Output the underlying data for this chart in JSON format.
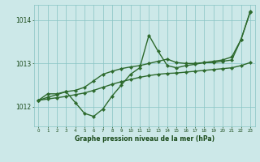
{
  "xlabel": "Graphe pression niveau de la mer (hPa)",
  "hours": [
    0,
    1,
    2,
    3,
    4,
    5,
    6,
    7,
    8,
    9,
    10,
    11,
    12,
    13,
    14,
    15,
    16,
    17,
    18,
    19,
    20,
    21,
    22,
    23
  ],
  "line1": [
    1012.15,
    1012.3,
    1012.3,
    1012.35,
    1012.1,
    1011.85,
    1011.78,
    1011.95,
    1012.25,
    1012.5,
    1012.75,
    1012.9,
    1013.65,
    1013.28,
    1012.95,
    1012.9,
    1012.95,
    1012.98,
    1013.02,
    1013.02,
    1013.05,
    1013.08,
    1013.55,
    1014.18
  ],
  "line2": [
    1012.15,
    1012.18,
    1012.21,
    1012.24,
    1012.28,
    1012.32,
    1012.38,
    1012.45,
    1012.52,
    1012.58,
    1012.63,
    1012.68,
    1012.72,
    1012.75,
    1012.77,
    1012.78,
    1012.8,
    1012.82,
    1012.84,
    1012.86,
    1012.88,
    1012.9,
    1012.95,
    1013.02
  ],
  "line3": [
    1012.15,
    1012.22,
    1012.28,
    1012.35,
    1012.38,
    1012.45,
    1012.6,
    1012.75,
    1012.82,
    1012.88,
    1012.92,
    1012.95,
    1013.0,
    1013.05,
    1013.1,
    1013.02,
    1013.0,
    1013.0,
    1013.02,
    1013.05,
    1013.08,
    1013.15,
    1013.55,
    1014.2
  ],
  "line_color": "#2d6a2d",
  "bg_color": "#cce8e8",
  "grid_color": "#88c4c4",
  "tick_color": "#1a4a1a",
  "label_color": "#1a4a1a",
  "ylim": [
    1011.55,
    1014.35
  ],
  "yticks": [
    1012,
    1013,
    1014
  ],
  "marker": "D",
  "marker_size": 2.2,
  "line_width": 1.0
}
